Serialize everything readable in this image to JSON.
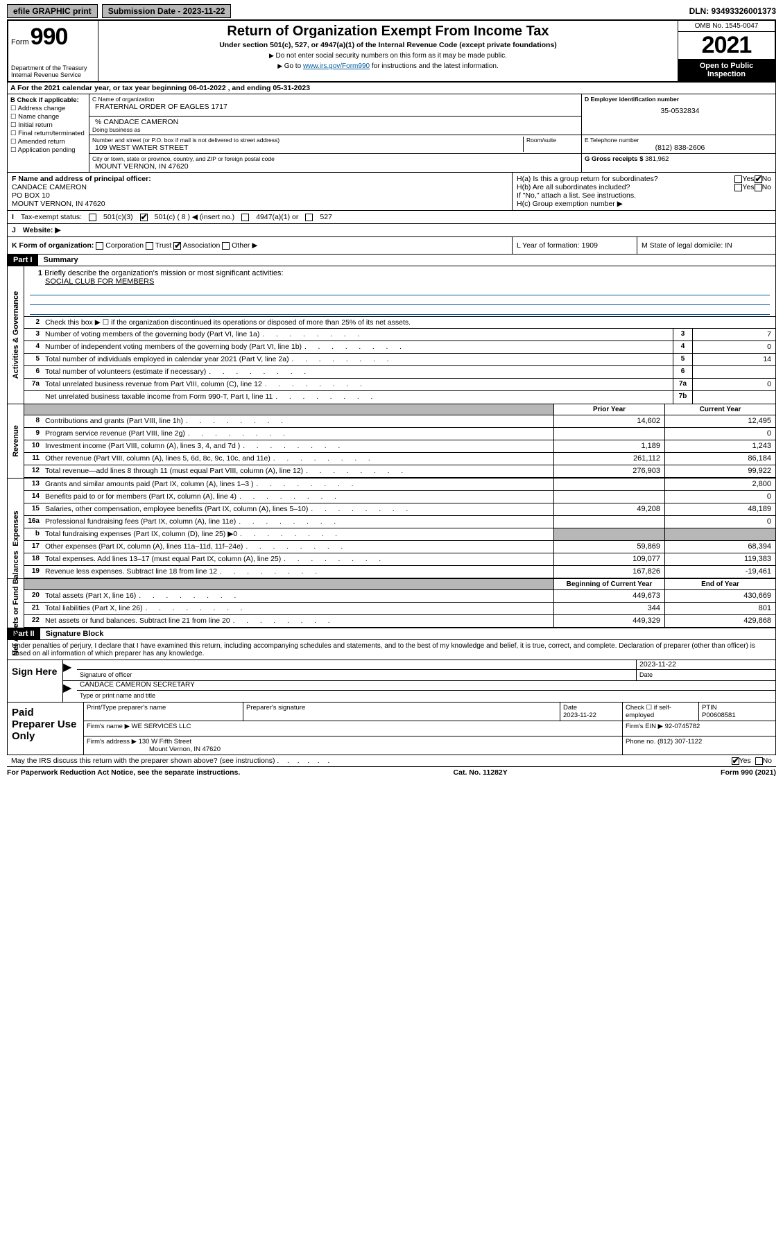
{
  "topbar": {
    "efile": "efile GRAPHIC print",
    "sub_label": "Submission Date - 2023-11-22",
    "dln": "DLN: 93493326001373"
  },
  "header": {
    "form_word": "Form",
    "form_num": "990",
    "dept": "Department of the Treasury Internal Revenue Service",
    "title": "Return of Organization Exempt From Income Tax",
    "sub": "Under section 501(c), 527, or 4947(a)(1) of the Internal Revenue Code (except private foundations)",
    "note1": "Do not enter social security numbers on this form as it may be made public.",
    "note2_pre": "Go to ",
    "note2_link": "www.irs.gov/Form990",
    "note2_post": " for instructions and the latest information.",
    "omb": "OMB No. 1545-0047",
    "year": "2021",
    "open": "Open to Public Inspection"
  },
  "rowA": "A For the 2021 calendar year, or tax year beginning 06-01-2022    , and ending 05-31-2023",
  "colB": {
    "title": "B Check if applicable:",
    "items": [
      "Address change",
      "Name change",
      "Initial return",
      "Final return/terminated",
      "Amended return",
      "Application pending"
    ]
  },
  "C": {
    "name_lbl": "C Name of organization",
    "name": "FRATERNAL ORDER OF EAGLES 1717",
    "care_lbl": "% CANDACE CAMERON",
    "dba_lbl": "Doing business as",
    "addr_lbl": "Number and street (or P.O. box if mail is not delivered to street address)",
    "room_lbl": "Room/suite",
    "addr": "109 WEST WATER STREET",
    "city_lbl": "City or town, state or province, country, and ZIP or foreign postal code",
    "city": "MOUNT VERNON, IN  47620"
  },
  "D": {
    "lbl": "D Employer identification number",
    "val": "35-0532834"
  },
  "E": {
    "lbl": "E Telephone number",
    "val": "(812) 838-2606"
  },
  "G": {
    "lbl": "G Gross receipts $",
    "val": "381,962"
  },
  "F": {
    "lbl": "F  Name and address of principal officer:",
    "name": "CANDACE CAMERON",
    "addr1": "PO BOX 10",
    "addr2": "MOUNT VERNON, IN  47620"
  },
  "H": {
    "a": "H(a)  Is this a group return for subordinates?",
    "b": "H(b)  Are all subordinates included?",
    "b_note": "If \"No,\" attach a list. See instructions.",
    "c": "H(c)  Group exemption number ▶",
    "yes": "Yes",
    "no": "No"
  },
  "I": {
    "lbl": "Tax-exempt status:",
    "opts": [
      "501(c)(3)",
      "501(c) ( 8 ) ◀ (insert no.)",
      "4947(a)(1) or",
      "527"
    ],
    "checked_idx": 1
  },
  "J": {
    "lbl": "Website: ▶"
  },
  "K": {
    "lbl": "K Form of organization:",
    "opts": [
      "Corporation",
      "Trust",
      "Association",
      "Other ▶"
    ],
    "checked_idx": 2
  },
  "L": {
    "lbl": "L Year of formation: 1909"
  },
  "M": {
    "lbl": "M State of legal domicile: IN"
  },
  "part1": {
    "hdr": "Part I",
    "title": "Summary"
  },
  "gov": {
    "sidebar": "Activities & Governance",
    "l1_lbl": "Briefly describe the organization's mission or most significant activities:",
    "l1_val": "SOCIAL CLUB FOR MEMBERS",
    "l2": "Check this box ▶ ☐  if the organization discontinued its operations or disposed of more than 25% of its net assets.",
    "rows": [
      {
        "n": "3",
        "d": "Number of voting members of the governing body (Part VI, line 1a)",
        "box": "3",
        "v": "7"
      },
      {
        "n": "4",
        "d": "Number of independent voting members of the governing body (Part VI, line 1b)",
        "box": "4",
        "v": "0"
      },
      {
        "n": "5",
        "d": "Total number of individuals employed in calendar year 2021 (Part V, line 2a)",
        "box": "5",
        "v": "14"
      },
      {
        "n": "6",
        "d": "Total number of volunteers (estimate if necessary)",
        "box": "6",
        "v": ""
      },
      {
        "n": "7a",
        "d": "Total unrelated business revenue from Part VIII, column (C), line 12",
        "box": "7a",
        "v": "0"
      },
      {
        "n": "",
        "d": "Net unrelated business taxable income from Form 990-T, Part I, line 11",
        "box": "7b",
        "v": ""
      }
    ]
  },
  "hdr2": {
    "py": "Prior Year",
    "cy": "Current Year"
  },
  "rev": {
    "sidebar": "Revenue",
    "rows": [
      {
        "n": "8",
        "d": "Contributions and grants (Part VIII, line 1h)",
        "py": "14,602",
        "cy": "12,495"
      },
      {
        "n": "9",
        "d": "Program service revenue (Part VIII, line 2g)",
        "py": "",
        "cy": "0"
      },
      {
        "n": "10",
        "d": "Investment income (Part VIII, column (A), lines 3, 4, and 7d )",
        "py": "1,189",
        "cy": "1,243"
      },
      {
        "n": "11",
        "d": "Other revenue (Part VIII, column (A), lines 5, 6d, 8c, 9c, 10c, and 11e)",
        "py": "261,112",
        "cy": "86,184"
      },
      {
        "n": "12",
        "d": "Total revenue—add lines 8 through 11 (must equal Part VIII, column (A), line 12)",
        "py": "276,903",
        "cy": "99,922"
      }
    ]
  },
  "exp": {
    "sidebar": "Expenses",
    "rows": [
      {
        "n": "13",
        "d": "Grants and similar amounts paid (Part IX, column (A), lines 1–3 )",
        "py": "",
        "cy": "2,800"
      },
      {
        "n": "14",
        "d": "Benefits paid to or for members (Part IX, column (A), line 4)",
        "py": "",
        "cy": "0"
      },
      {
        "n": "15",
        "d": "Salaries, other compensation, employee benefits (Part IX, column (A), lines 5–10)",
        "py": "49,208",
        "cy": "48,189"
      },
      {
        "n": "16a",
        "d": "Professional fundraising fees (Part IX, column (A), line 11e)",
        "py": "",
        "cy": "0"
      },
      {
        "n": "b",
        "d": "Total fundraising expenses (Part IX, column (D), line 25) ▶0",
        "py": "shade",
        "cy": "shade"
      },
      {
        "n": "17",
        "d": "Other expenses (Part IX, column (A), lines 11a–11d, 11f–24e)",
        "py": "59,869",
        "cy": "68,394"
      },
      {
        "n": "18",
        "d": "Total expenses. Add lines 13–17 (must equal Part IX, column (A), line 25)",
        "py": "109,077",
        "cy": "119,383"
      },
      {
        "n": "19",
        "d": "Revenue less expenses. Subtract line 18 from line 12",
        "py": "167,826",
        "cy": "-19,461"
      }
    ]
  },
  "hdr3": {
    "py": "Beginning of Current Year",
    "cy": "End of Year"
  },
  "net": {
    "sidebar": "Net Assets or Fund Balances",
    "rows": [
      {
        "n": "20",
        "d": "Total assets (Part X, line 16)",
        "py": "449,673",
        "cy": "430,669"
      },
      {
        "n": "21",
        "d": "Total liabilities (Part X, line 26)",
        "py": "344",
        "cy": "801"
      },
      {
        "n": "22",
        "d": "Net assets or fund balances. Subtract line 21 from line 20",
        "py": "449,329",
        "cy": "429,868"
      }
    ]
  },
  "part2": {
    "hdr": "Part II",
    "title": "Signature Block"
  },
  "sig": {
    "intro": "Under penalties of perjury, I declare that I have examined this return, including accompanying schedules and statements, and to the best of my knowledge and belief, it is true, correct, and complete. Declaration of preparer (other than officer) is based on all information of which preparer has any knowledge.",
    "sign_here": "Sign Here",
    "sig_of": "Signature of officer",
    "date_lbl": "Date",
    "date": "2023-11-22",
    "name": "CANDACE CAMERON  SECRETARY",
    "name_lbl": "Type or print name and title"
  },
  "prep": {
    "title": "Paid Preparer Use Only",
    "h": [
      "Print/Type preparer's name",
      "Preparer's signature",
      "Date",
      "Check ☐ if self-employed",
      "PTIN"
    ],
    "date": "2023-11-22",
    "ptin": "P00608581",
    "firm_lbl": "Firm's name    ▶",
    "firm": "WE SERVICES LLC",
    "ein_lbl": "Firm's EIN ▶",
    "ein": "92-0745782",
    "addr_lbl": "Firm's address ▶",
    "addr1": "130 W Fifth Street",
    "addr2": "Mount Vernon, IN  47620",
    "phone_lbl": "Phone no.",
    "phone": "(812) 307-1122"
  },
  "footer": {
    "discuss": "May the IRS discuss this return with the preparer shown above? (see instructions)",
    "yes": "Yes",
    "no": "No",
    "paperwork": "For Paperwork Reduction Act Notice, see the separate instructions.",
    "cat": "Cat. No. 11282Y",
    "form": "Form 990 (2021)"
  }
}
